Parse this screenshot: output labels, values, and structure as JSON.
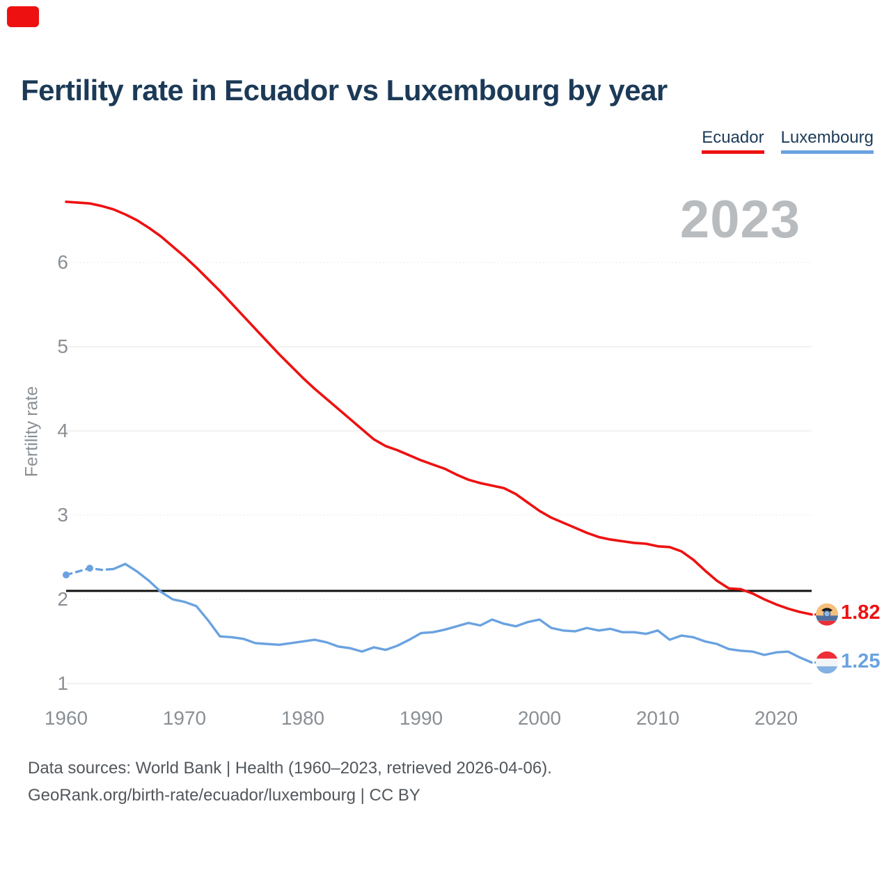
{
  "badge": {
    "color": "#ee1111"
  },
  "header": {
    "title": "Fertility rate in Ecuador vs Luxembourg by year"
  },
  "legend": {
    "items": [
      {
        "label": "Ecuador",
        "color": "#ee1111"
      },
      {
        "label": "Luxembourg",
        "color": "#6aa2e0"
      }
    ]
  },
  "watermark": "2023",
  "y_axis": {
    "label": "Fertility rate",
    "ticks": [
      1,
      2,
      3,
      4,
      5,
      6
    ]
  },
  "x_axis": {
    "ticks": [
      1960,
      1970,
      1980,
      1990,
      2000,
      2010,
      2020
    ]
  },
  "chart_data": {
    "type": "line",
    "title": "Fertility rate in Ecuador vs Luxembourg by year",
    "ylabel": "Fertility rate",
    "xlabel": "",
    "x_start_year": 1960,
    "x_end_year": 2023,
    "xlim": [
      1960,
      2023
    ],
    "ylim": [
      0.8,
      6.9
    ],
    "grid": true,
    "legend_position": "top-right",
    "reference_value": 2.1,
    "watermark_year": "2023",
    "series": [
      {
        "name": "Ecuador",
        "color": "#ee1111",
        "icon": "ecuador-flag-icon",
        "end_label": "1.82",
        "values": [
          6.72,
          6.71,
          6.7,
          6.67,
          6.63,
          6.57,
          6.5,
          6.41,
          6.31,
          6.19,
          6.07,
          5.94,
          5.8,
          5.66,
          5.51,
          5.36,
          5.21,
          5.06,
          4.91,
          4.77,
          4.63,
          4.5,
          4.38,
          4.26,
          4.14,
          4.02,
          3.9,
          3.82,
          3.77,
          3.71,
          3.65,
          3.6,
          3.55,
          3.48,
          3.42,
          3.38,
          3.35,
          3.32,
          3.25,
          3.15,
          3.05,
          2.97,
          2.91,
          2.85,
          2.79,
          2.74,
          2.71,
          2.69,
          2.67,
          2.66,
          2.63,
          2.62,
          2.57,
          2.47,
          2.34,
          2.22,
          2.13,
          2.12,
          2.07,
          2.0,
          1.94,
          1.89,
          1.85,
          1.82
        ]
      },
      {
        "name": "Luxembourg",
        "color": "#6aa2e0",
        "icon": "luxembourg-flag-icon",
        "end_label": "1.25",
        "dashed_until_year": 1964,
        "marker_years": [
          1960,
          1962
        ],
        "values": [
          2.29,
          2.33,
          2.37,
          2.35,
          2.36,
          2.42,
          2.33,
          2.22,
          2.09,
          2.0,
          1.97,
          1.92,
          1.75,
          1.56,
          1.55,
          1.53,
          1.48,
          1.47,
          1.46,
          1.48,
          1.5,
          1.52,
          1.49,
          1.44,
          1.42,
          1.38,
          1.43,
          1.4,
          1.45,
          1.52,
          1.6,
          1.61,
          1.64,
          1.68,
          1.72,
          1.69,
          1.76,
          1.71,
          1.68,
          1.73,
          1.76,
          1.66,
          1.63,
          1.62,
          1.66,
          1.63,
          1.65,
          1.61,
          1.61,
          1.59,
          1.63,
          1.52,
          1.57,
          1.55,
          1.5,
          1.47,
          1.41,
          1.39,
          1.38,
          1.34,
          1.37,
          1.38,
          1.31,
          1.25
        ]
      }
    ]
  },
  "footer": {
    "line1": "Data sources: World Bank | Health (1960–2023, retrieved 2026-04-06).",
    "line2": "GeoRank.org/birth-rate/ecuador/luxembourg | CC BY"
  }
}
